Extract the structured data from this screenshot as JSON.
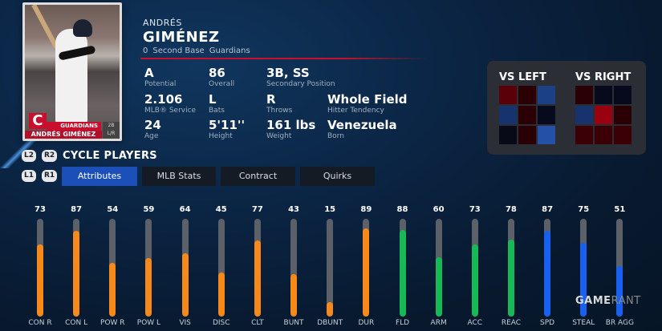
{
  "card": {
    "team": "GUARDIANS",
    "name": "ANDRÉS GIMÉNEZ",
    "position_badge": "2B",
    "bats_throws": "L/R",
    "logo_letter": "C"
  },
  "player": {
    "first_name": "ANDRÉS",
    "last_name": "GIMÉNEZ",
    "number": "0",
    "position": "Second Base",
    "team": "Guardians"
  },
  "stats": [
    {
      "value": "A",
      "label": "Potential"
    },
    {
      "value": "86",
      "label": "Overall"
    },
    {
      "value": "3B, SS",
      "label": "Secondary Position"
    },
    {
      "value": "2.106",
      "label": "MLB® Service"
    },
    {
      "value": "L",
      "label": "Bats"
    },
    {
      "value": "R",
      "label": "Throws"
    },
    {
      "value": "Whole Field",
      "label": "Hitter Tendency"
    },
    {
      "value": "24",
      "label": "Age"
    },
    {
      "value": "5'11''",
      "label": "Height"
    },
    {
      "value": "161 lbs",
      "label": "Weight"
    },
    {
      "value": "Venezuela",
      "label": "Born"
    }
  ],
  "splits": {
    "vs_left": {
      "title": "VS LEFT",
      "cells": [
        "#5a0008",
        "#2a0005",
        "#1c3f86",
        "#17336e",
        "#2a0005",
        "#060a1c",
        "#080a18",
        "#2a0005",
        "#2450a8"
      ]
    },
    "vs_right": {
      "title": "VS RIGHT",
      "cells": [
        "#2a0005",
        "#060a1c",
        "#060a1c",
        "#17336e",
        "#9a0010",
        "#2a0005",
        "#3a0006",
        "#3a0006",
        "#3a0006"
      ]
    }
  },
  "controls": {
    "l2": "L2",
    "r2": "R2",
    "l1": "L1",
    "r1": "R1",
    "cycle_label": "CYCLE PLAYERS"
  },
  "tabs": [
    {
      "label": "Attributes",
      "active": true
    },
    {
      "label": "MLB Stats",
      "active": false
    },
    {
      "label": "Contract",
      "active": false
    },
    {
      "label": "Quirks",
      "active": false
    }
  ],
  "colors": {
    "contact_power": "#f7891b",
    "fielding": "#16b956",
    "speed": "#1760f0",
    "track": "#5c6068",
    "accent_red": "#c8102e"
  },
  "chart_data": {
    "type": "bar",
    "title": "Attributes",
    "categories": [
      "CON R",
      "CON L",
      "POW R",
      "POW L",
      "VIS",
      "DISC",
      "CLT",
      "BUNT",
      "DBUNT",
      "DUR",
      "FLD",
      "ARM",
      "ACC",
      "REAC",
      "SPD",
      "STEAL",
      "BR AGG"
    ],
    "values": [
      73,
      87,
      54,
      59,
      64,
      45,
      77,
      43,
      15,
      89,
      88,
      60,
      73,
      78,
      87,
      75,
      51
    ],
    "groups": [
      "hitting",
      "hitting",
      "hitting",
      "hitting",
      "hitting",
      "hitting",
      "hitting",
      "hitting",
      "hitting",
      "hitting",
      "fielding",
      "fielding",
      "fielding",
      "fielding",
      "running",
      "running",
      "running"
    ],
    "ylim": [
      0,
      99
    ],
    "orientation": "vertical"
  },
  "watermark": {
    "part1": "GAME",
    "part2": "RANT"
  }
}
